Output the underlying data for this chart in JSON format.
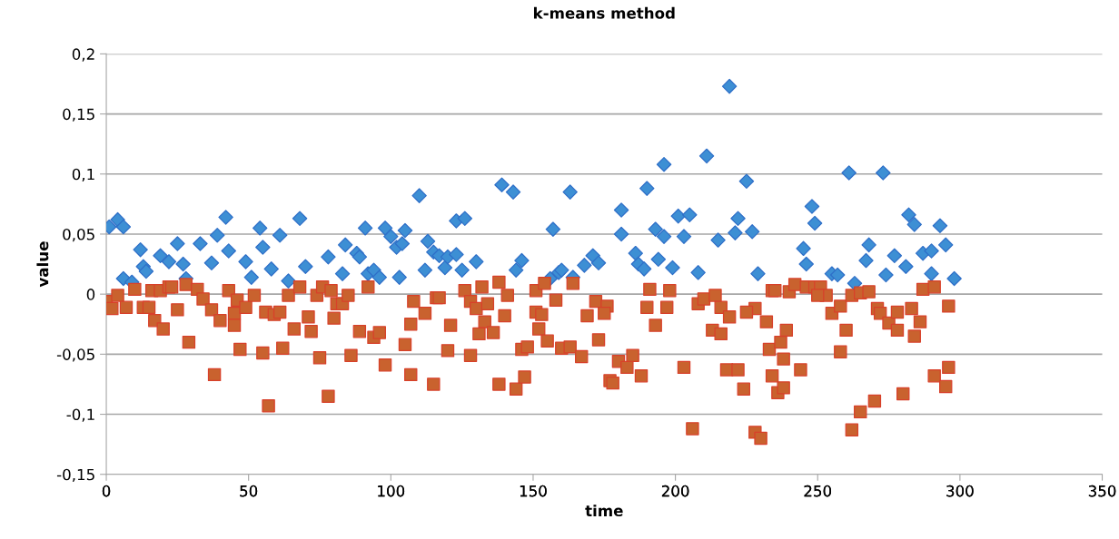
{
  "chart_data": {
    "type": "scatter",
    "title": "k-means method",
    "xlabel": "time",
    "ylabel": "value",
    "xlim": [
      0,
      350
    ],
    "xticks": [
      0,
      50,
      100,
      150,
      200,
      250,
      300,
      350
    ],
    "ylim": [
      -0.15,
      0.2
    ],
    "yticks": [
      {
        "value": -0.15,
        "label": "-0,15"
      },
      {
        "value": -0.1,
        "label": "-0,1"
      },
      {
        "value": -0.05,
        "label": "-0,05"
      },
      {
        "value": 0,
        "label": "0"
      },
      {
        "value": 0.05,
        "label": "0,05"
      },
      {
        "value": 0.1,
        "label": "0,1"
      },
      {
        "value": 0.15,
        "label": "0,15"
      },
      {
        "value": 0.2,
        "label": "0,2"
      }
    ],
    "grid": "y",
    "legend": false,
    "series": [
      {
        "color": "#3d8fd4",
        "marker": "diamond",
        "x": [
          1,
          4,
          6,
          6,
          9,
          12,
          13,
          14,
          19,
          22,
          25,
          27,
          28,
          33,
          37,
          39,
          42,
          43,
          49,
          51,
          54,
          55,
          58,
          61,
          64,
          68,
          70,
          78,
          83,
          84,
          88,
          89,
          91,
          92,
          94,
          96,
          98,
          100,
          102,
          103,
          104,
          105,
          110,
          112,
          113,
          115,
          117,
          119,
          120,
          123,
          123,
          125,
          126,
          130,
          139,
          143,
          144,
          146,
          156,
          157,
          159,
          160,
          163,
          164,
          168,
          171,
          173,
          181,
          181,
          186,
          187,
          189,
          190,
          193,
          194,
          196,
          196,
          199,
          201,
          203,
          205,
          208,
          211,
          215,
          219,
          221,
          222,
          225,
          227,
          229,
          245,
          246,
          248,
          249,
          255,
          257,
          261,
          263,
          267,
          268,
          273,
          274,
          277,
          281,
          282,
          284,
          287,
          290,
          290,
          293,
          295,
          298
        ],
        "values": [
          0.056,
          0.062,
          0.056,
          0.013,
          0.01,
          0.037,
          0.023,
          0.019,
          0.032,
          0.027,
          0.042,
          0.025,
          0.013,
          0.042,
          0.026,
          0.049,
          0.064,
          0.036,
          0.027,
          0.014,
          0.055,
          0.039,
          0.021,
          0.049,
          0.011,
          0.063,
          0.023,
          0.031,
          0.017,
          0.041,
          0.034,
          0.031,
          0.055,
          0.017,
          0.02,
          0.014,
          0.055,
          0.048,
          0.039,
          0.014,
          0.042,
          0.053,
          0.082,
          0.02,
          0.044,
          0.035,
          0.032,
          0.022,
          0.031,
          0.061,
          0.033,
          0.02,
          0.063,
          0.027,
          0.091,
          0.085,
          0.02,
          0.028,
          0.013,
          0.054,
          0.018,
          0.02,
          0.085,
          0.014,
          0.024,
          0.032,
          0.026,
          0.07,
          0.05,
          0.034,
          0.025,
          0.021,
          0.088,
          0.054,
          0.029,
          0.108,
          0.048,
          0.022,
          0.065,
          0.048,
          0.066,
          0.018,
          0.115,
          0.045,
          0.173,
          0.051,
          0.063,
          0.094,
          0.052,
          0.017,
          0.038,
          0.025,
          0.073,
          0.059,
          0.017,
          0.016,
          0.101,
          0.009,
          0.028,
          0.041,
          0.101,
          0.016,
          0.032,
          0.023,
          0.066,
          0.058,
          0.034,
          0.036,
          0.017,
          0.057,
          0.041,
          0.013
        ]
      },
      {
        "color": "#c9622e",
        "marker": "square",
        "x": [
          0,
          2,
          4,
          7,
          10,
          13,
          15,
          16,
          17,
          20,
          19,
          22,
          23,
          25,
          28,
          29,
          32,
          34,
          37,
          38,
          40,
          43,
          45,
          46,
          45,
          47,
          49,
          52,
          56,
          55,
          57,
          59,
          61,
          62,
          64,
          66,
          68,
          71,
          72,
          74,
          75,
          76,
          78,
          79,
          80,
          81,
          83,
          85,
          86,
          89,
          92,
          94,
          96,
          98,
          105,
          107,
          107,
          108,
          112,
          115,
          116,
          117,
          121,
          120,
          126,
          128,
          130,
          132,
          134,
          133,
          131,
          136,
          128,
          138,
          141,
          140,
          138,
          144,
          147,
          146,
          148,
          151,
          154,
          151,
          153,
          152,
          155,
          158,
          160,
          163,
          164,
          167,
          172,
          169,
          173,
          176,
          175,
          177,
          178,
          180,
          183,
          185,
          188,
          191,
          190,
          193,
          198,
          197,
          203,
          206,
          208,
          210,
          214,
          216,
          219,
          213,
          216,
          218,
          222,
          224,
          228,
          225,
          232,
          234,
          233,
          234,
          236,
          228,
          230,
          235,
          240,
          242,
          246,
          249,
          251,
          253,
          250,
          255,
          258,
          260,
          258,
          239,
          237,
          238,
          244,
          238,
          262,
          265,
          270,
          262,
          265,
          268,
          271,
          272,
          275,
          278,
          278,
          283,
          286,
          284,
          280,
          287,
          291,
          296,
          291,
          296,
          295
        ],
        "values": [
          -0.006,
          -0.012,
          -0.001,
          -0.011,
          0.004,
          -0.011,
          -0.011,
          0.003,
          -0.022,
          -0.029,
          0.003,
          0.006,
          0.006,
          -0.013,
          0.008,
          -0.04,
          0.004,
          -0.004,
          -0.013,
          -0.067,
          -0.022,
          0.003,
          -0.016,
          -0.005,
          -0.026,
          -0.046,
          -0.011,
          -0.001,
          -0.015,
          -0.049,
          -0.093,
          -0.017,
          -0.015,
          -0.045,
          -0.001,
          -0.029,
          0.006,
          -0.019,
          -0.031,
          -0.001,
          -0.053,
          0.006,
          -0.085,
          0.003,
          -0.02,
          -0.008,
          -0.008,
          -0.001,
          -0.051,
          -0.031,
          0.006,
          -0.036,
          -0.032,
          -0.059,
          -0.042,
          -0.025,
          -0.067,
          -0.006,
          -0.016,
          -0.075,
          -0.003,
          -0.003,
          -0.026,
          -0.047,
          0.003,
          -0.006,
          -0.012,
          0.006,
          -0.008,
          -0.023,
          -0.033,
          -0.032,
          -0.051,
          0.01,
          -0.001,
          -0.018,
          -0.075,
          -0.079,
          -0.069,
          -0.046,
          -0.044,
          0.003,
          0.009,
          -0.015,
          -0.017,
          -0.029,
          -0.039,
          -0.005,
          -0.045,
          -0.044,
          0.009,
          -0.052,
          -0.006,
          -0.018,
          -0.038,
          -0.01,
          -0.016,
          -0.072,
          -0.074,
          -0.056,
          -0.061,
          -0.051,
          -0.068,
          0.004,
          -0.011,
          -0.026,
          0.003,
          -0.011,
          -0.061,
          -0.112,
          -0.008,
          -0.004,
          -0.001,
          -0.011,
          -0.019,
          -0.03,
          -0.033,
          -0.063,
          -0.063,
          -0.079,
          -0.012,
          -0.015,
          -0.023,
          0.003,
          -0.046,
          -0.068,
          -0.082,
          -0.115,
          -0.12,
          0.003,
          0.002,
          0.008,
          0.006,
          0.006,
          0.006,
          -0.001,
          -0.001,
          -0.016,
          -0.01,
          -0.03,
          -0.048,
          -0.03,
          -0.04,
          -0.054,
          -0.063,
          -0.078,
          -0.113,
          -0.098,
          -0.089,
          -0.001,
          0.001,
          0.002,
          -0.012,
          -0.016,
          -0.024,
          -0.015,
          -0.03,
          -0.012,
          -0.023,
          -0.035,
          -0.083,
          0.004,
          0.006,
          -0.01,
          -0.068,
          -0.061,
          -0.077
        ]
      }
    ]
  }
}
